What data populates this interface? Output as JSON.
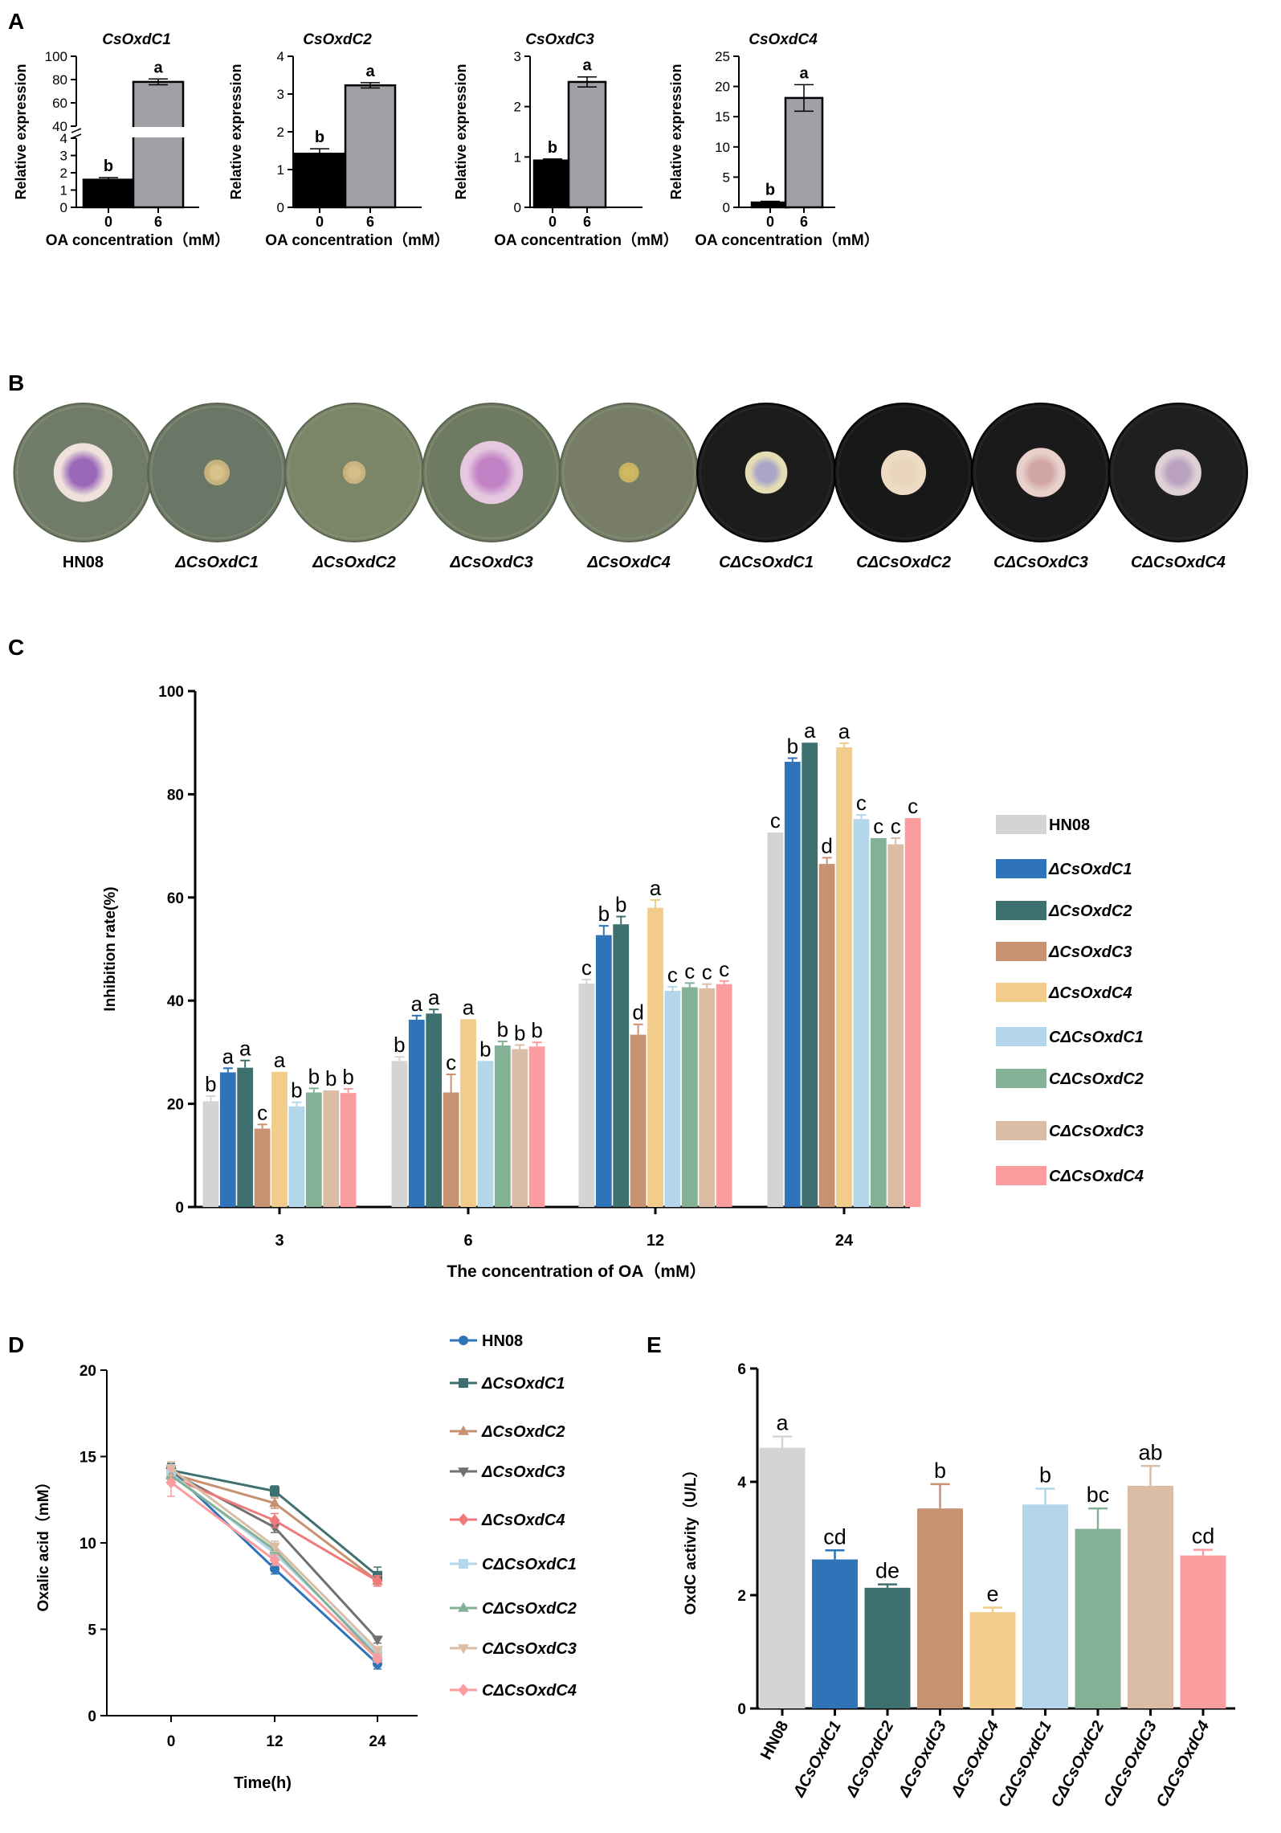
{
  "panel_letters": [
    "A",
    "B",
    "C",
    "D",
    "E"
  ],
  "chart_data": [
    {
      "id": "A1",
      "type": "bar",
      "title": "CsOxdC1",
      "xlabel": "OA concentration（mM）",
      "ylabel": "Relative expression",
      "categories": [
        "0",
        "6"
      ],
      "values": [
        1.6,
        78
      ],
      "errors": [
        0.12,
        2.5
      ],
      "letters": [
        "b",
        "a"
      ],
      "colors": [
        "#000000",
        "#a0a0a6"
      ],
      "broken_axis": {
        "lower": [
          0,
          4
        ],
        "upper": [
          40,
          100
        ]
      },
      "ylim": [
        0,
        100
      ],
      "yticks": [
        "0",
        "1",
        "2",
        "3",
        "4",
        "40",
        "60",
        "80",
        "100"
      ]
    },
    {
      "id": "A2",
      "type": "bar",
      "title": "CsOxdC2",
      "xlabel": "OA concentration（mM）",
      "ylabel": "Relative expression",
      "categories": [
        "0",
        "6"
      ],
      "values": [
        1.42,
        3.23
      ],
      "errors": [
        0.13,
        0.07
      ],
      "letters": [
        "b",
        "a"
      ],
      "colors": [
        "#000000",
        "#a0a0a6"
      ],
      "ylim": [
        0,
        4
      ],
      "yticks": [
        "0",
        "1",
        "2",
        "3",
        "4"
      ]
    },
    {
      "id": "A3",
      "type": "bar",
      "title": "CsOxdC3",
      "xlabel": "OA concentration（mM）",
      "ylabel": "Relative expression",
      "categories": [
        "0",
        "6"
      ],
      "values": [
        0.93,
        2.49
      ],
      "errors": [
        0.03,
        0.1
      ],
      "letters": [
        "b",
        "a"
      ],
      "colors": [
        "#000000",
        "#a0a0a6"
      ],
      "ylim": [
        0,
        3
      ],
      "yticks": [
        "0",
        "1",
        "2",
        "3"
      ]
    },
    {
      "id": "A4",
      "type": "bar",
      "title": "CsOxdC4",
      "xlabel": "OA concentration（mM）",
      "ylabel": "Relative expression",
      "categories": [
        "0",
        "6"
      ],
      "values": [
        0.8,
        18.1
      ],
      "errors": [
        0.2,
        2.2
      ],
      "letters": [
        "b",
        "a"
      ],
      "colors": [
        "#000000",
        "#a0a0a6"
      ],
      "ylim": [
        0,
        25
      ],
      "yticks": [
        "0",
        "5",
        "10",
        "15",
        "20",
        "25"
      ]
    },
    {
      "id": "C",
      "type": "bar",
      "xlabel": "The concentration of OA（mM）",
      "ylabel": "Inhibition rate(%)",
      "categories": [
        "3",
        "6",
        "12",
        "24"
      ],
      "ylim": [
        0,
        100
      ],
      "yticks": [
        "0",
        "20",
        "40",
        "60",
        "80",
        "100"
      ],
      "series": [
        {
          "name": "HN08",
          "color": "#d4d4d4",
          "values": [
            20.5,
            28.3,
            43.3,
            72.6
          ],
          "errors": [
            1.0,
            0.8,
            0.8,
            0
          ],
          "letters": [
            "b",
            "b",
            "c",
            "c"
          ]
        },
        {
          "name": "ΔCsOxdC1",
          "color": "#2f74b8",
          "values": [
            26.1,
            36.3,
            52.7,
            86.3
          ],
          "errors": [
            0.8,
            0.8,
            1.8,
            0.7
          ],
          "letters": [
            "a",
            "a",
            "b",
            "b"
          ]
        },
        {
          "name": "ΔCsOxdC2",
          "color": "#3f7070",
          "values": [
            27.0,
            37.5,
            54.8,
            90.0
          ],
          "errors": [
            1.4,
            0.8,
            1.5,
            0
          ],
          "letters": [
            "a",
            "a",
            "b",
            "a"
          ]
        },
        {
          "name": "ΔCsOxdC3",
          "color": "#c79271",
          "values": [
            15.2,
            22.2,
            33.4,
            66.5
          ],
          "errors": [
            0.8,
            3.5,
            2.0,
            1.2
          ],
          "letters": [
            "c",
            "c",
            "d",
            "d"
          ]
        },
        {
          "name": "ΔCsOxdC4",
          "color": "#f1cc8a",
          "values": [
            26.2,
            36.4,
            58.0,
            89.1
          ],
          "errors": [
            0,
            0,
            1.5,
            0.8
          ],
          "letters": [
            "a",
            "a",
            "a",
            "a"
          ]
        },
        {
          "name": "CΔCsOxdC1",
          "color": "#b3d6ea",
          "values": [
            19.5,
            28.3,
            41.9,
            75.2
          ],
          "errors": [
            0.8,
            0,
            0.8,
            0.8
          ],
          "letters": [
            "b",
            "b",
            "c",
            "c"
          ]
        },
        {
          "name": "CΔCsOxdC2",
          "color": "#82b195",
          "values": [
            22.2,
            31.3,
            42.6,
            71.5
          ],
          "errors": [
            0.8,
            0.8,
            0.8,
            0
          ],
          "letters": [
            "b",
            "b",
            "c",
            "c"
          ]
        },
        {
          "name": "CΔCsOxdC3",
          "color": "#dbbca4",
          "values": [
            22.6,
            30.6,
            42.4,
            70.3
          ],
          "errors": [
            0,
            0.8,
            0.8,
            1.2
          ],
          "letters": [
            "b",
            "b",
            "c",
            "c"
          ]
        },
        {
          "name": "CΔCsOxdC4",
          "color": "#fb9c9f",
          "values": [
            22.1,
            31.1,
            43.2,
            75.4
          ],
          "errors": [
            0.8,
            0.8,
            0.6,
            0
          ],
          "letters": [
            "b",
            "b",
            "c",
            "c"
          ]
        }
      ]
    },
    {
      "id": "D",
      "type": "line",
      "xlabel": "Time(h)",
      "ylabel": "Oxalic acid（mM）",
      "x": [
        0,
        12,
        24
      ],
      "ylim": [
        0,
        20
      ],
      "yticks": [
        "0",
        "5",
        "10",
        "15",
        "20"
      ],
      "series": [
        {
          "name": "HN08",
          "color": "#2f74b8",
          "marker": "circle",
          "values": [
            14.2,
            8.5,
            3.0
          ],
          "errors": [
            0.4,
            0.3,
            0.3
          ]
        },
        {
          "name": "ΔCsOxdC1",
          "color": "#3f7070",
          "marker": "square",
          "values": [
            14.2,
            13.0,
            8.1
          ],
          "errors": [
            0.4,
            0.3,
            0.5
          ]
        },
        {
          "name": "ΔCsOxdC2",
          "color": "#c79271",
          "marker": "triangle-up",
          "values": [
            14.0,
            12.3,
            7.8
          ],
          "errors": [
            0.4,
            0.3,
            0.3
          ]
        },
        {
          "name": "ΔCsOxdC3",
          "color": "#707070",
          "marker": "triangle-down",
          "values": [
            14.1,
            10.9,
            4.4
          ],
          "errors": [
            0.4,
            0.3,
            0.2
          ]
        },
        {
          "name": "ΔCsOxdC4",
          "color": "#f07a7a",
          "marker": "diamond",
          "values": [
            13.8,
            11.3,
            7.8
          ],
          "errors": [
            0.4,
            0.4,
            0.3
          ]
        },
        {
          "name": "CΔCsOxdC1",
          "color": "#b3d6ea",
          "marker": "square",
          "values": [
            14.0,
            9.4,
            3.6
          ],
          "errors": [
            0.4,
            0.3,
            0.2
          ]
        },
        {
          "name": "CΔCsOxdC2",
          "color": "#82b195",
          "marker": "triangle-up",
          "values": [
            13.9,
            9.6,
            3.4
          ],
          "errors": [
            0.4,
            0.3,
            0.2
          ]
        },
        {
          "name": "CΔCsOxdC3",
          "color": "#dbbca4",
          "marker": "triangle-down",
          "values": [
            14.3,
            9.8,
            3.8
          ],
          "errors": [
            0.4,
            0.3,
            0.2
          ]
        },
        {
          "name": "CΔCsOxdC4",
          "color": "#fb9c9f",
          "marker": "diamond",
          "values": [
            13.5,
            9.0,
            3.3
          ],
          "errors": [
            0.8,
            0.3,
            0.2
          ]
        }
      ]
    },
    {
      "id": "E",
      "type": "bar",
      "xlabel": "",
      "ylabel": "OxdC activity（U/L）",
      "categories": [
        "HN08",
        "ΔCsOxdC1",
        "ΔCsOxdC2",
        "ΔCsOxdC3",
        "ΔCsOxdC4",
        "CΔCsOxdC1",
        "CΔCsOxdC2",
        "CΔCsOxdC3",
        "CΔCsOxdC4"
      ],
      "values": [
        4.6,
        2.63,
        2.13,
        3.53,
        1.7,
        3.6,
        3.17,
        3.93,
        2.7
      ],
      "errors": [
        0.2,
        0.16,
        0.06,
        0.43,
        0.08,
        0.28,
        0.36,
        0.35,
        0.1
      ],
      "letters": [
        "a",
        "cd",
        "de",
        "b",
        "e",
        "b",
        "bc",
        "ab",
        "cd"
      ],
      "colors": [
        "#d4d4d4",
        "#2f74b8",
        "#3f7070",
        "#c79271",
        "#f1cc8a",
        "#b3d6ea",
        "#82b195",
        "#dbbca4",
        "#fb9c9f"
      ],
      "ylim": [
        0,
        6
      ],
      "yticks": [
        "0",
        "2",
        "4",
        "6"
      ]
    }
  ],
  "panel_b": {
    "plates": [
      {
        "label": "HN08",
        "bg": "#707c69",
        "colony": "#efe1dc",
        "center": "#9a68b8",
        "size": 0.42,
        "dark": false
      },
      {
        "label": "ΔCsOxdC1",
        "bg": "#6b7766",
        "colony": "#c7b17c",
        "center": "#d8c48b",
        "size": 0.18,
        "dark": false
      },
      {
        "label": "ΔCsOxdC2",
        "bg": "#7b8568",
        "colony": "#c8b27f",
        "center": "#d6c08a",
        "size": 0.16,
        "dark": false
      },
      {
        "label": "ΔCsOxdC3",
        "bg": "#6f7a63",
        "colony": "#e6c9e0",
        "center": "#c081c5",
        "size": 0.45,
        "dark": false
      },
      {
        "label": "ΔCsOxdC4",
        "bg": "#777d67",
        "colony": "#c6b45f",
        "center": "#cfb963",
        "size": 0.14,
        "dark": false
      },
      {
        "label": "CΔCsOxdC1",
        "bg": "#1c1c1c",
        "colony": "#e5dcb6",
        "center": "#a9a6c7",
        "size": 0.3,
        "dark": true
      },
      {
        "label": "CΔCsOxdC2",
        "bg": "#181818",
        "colony": "#eddbc3",
        "center": "#e9d4bc",
        "size": 0.32,
        "dark": true
      },
      {
        "label": "CΔCsOxdC3",
        "bg": "#1a1a1a",
        "colony": "#e8d0cb",
        "center": "#cfa5a5",
        "size": 0.35,
        "dark": true
      },
      {
        "label": "CΔCsOxdC4",
        "bg": "#1f1f1f",
        "colony": "#ddd0d6",
        "center": "#b9a1bf",
        "size": 0.33,
        "dark": true
      }
    ]
  }
}
